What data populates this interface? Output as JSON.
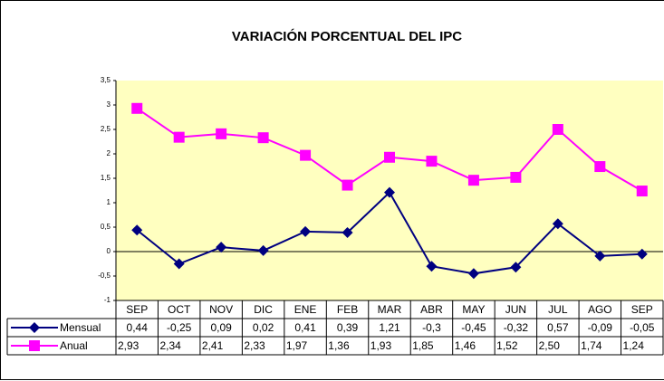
{
  "chart_data": {
    "type": "line",
    "title": "VARIACIÓN PORCENTUAL DEL IPC",
    "categories": [
      "SEP",
      "OCT",
      "NOV",
      "DIC",
      "ENE",
      "FEB",
      "MAR",
      "ABR",
      "MAY",
      "JUN",
      "JUL",
      "AGO",
      "SEP"
    ],
    "series": [
      {
        "name": "Mensual",
        "color": "#000080",
        "marker": "diamond",
        "values": [
          0.44,
          -0.25,
          0.09,
          0.02,
          0.41,
          0.39,
          1.21,
          -0.3,
          -0.45,
          -0.32,
          0.57,
          -0.09,
          -0.05
        ],
        "value_labels": [
          "0,44",
          "-0,25",
          "0,09",
          "0,02",
          "0,41",
          "0,39",
          "1,21",
          "-0,3",
          "-0,45",
          "-0,32",
          "0,57",
          "-0,09",
          "-0,05"
        ]
      },
      {
        "name": "Anual",
        "color": "#ff00ff",
        "marker": "square",
        "values": [
          2.93,
          2.34,
          2.41,
          2.33,
          1.97,
          1.36,
          1.93,
          1.85,
          1.46,
          1.52,
          2.5,
          1.74,
          1.24
        ],
        "value_labels": [
          "2,93",
          "2,34",
          "2,41",
          "2,33",
          "1,97",
          "1,36",
          "1,93",
          "1,85",
          "1,46",
          "1,52",
          "2,50",
          "1,74",
          "1,24"
        ]
      }
    ],
    "ylim": [
      -1,
      3.5
    ],
    "yticks": [
      -1,
      {
        "value": -0.5,
        "label": "-0,5"
      },
      0,
      {
        "value": 0.5,
        "label": "0,5"
      },
      1,
      {
        "value": 1.5,
        "label": "1,5"
      },
      2,
      {
        "value": 2.5,
        "label": "2,5"
      },
      3,
      {
        "value": 3.5,
        "label": "3,5"
      }
    ],
    "grid": false,
    "plot_background": "#ffffc0"
  }
}
